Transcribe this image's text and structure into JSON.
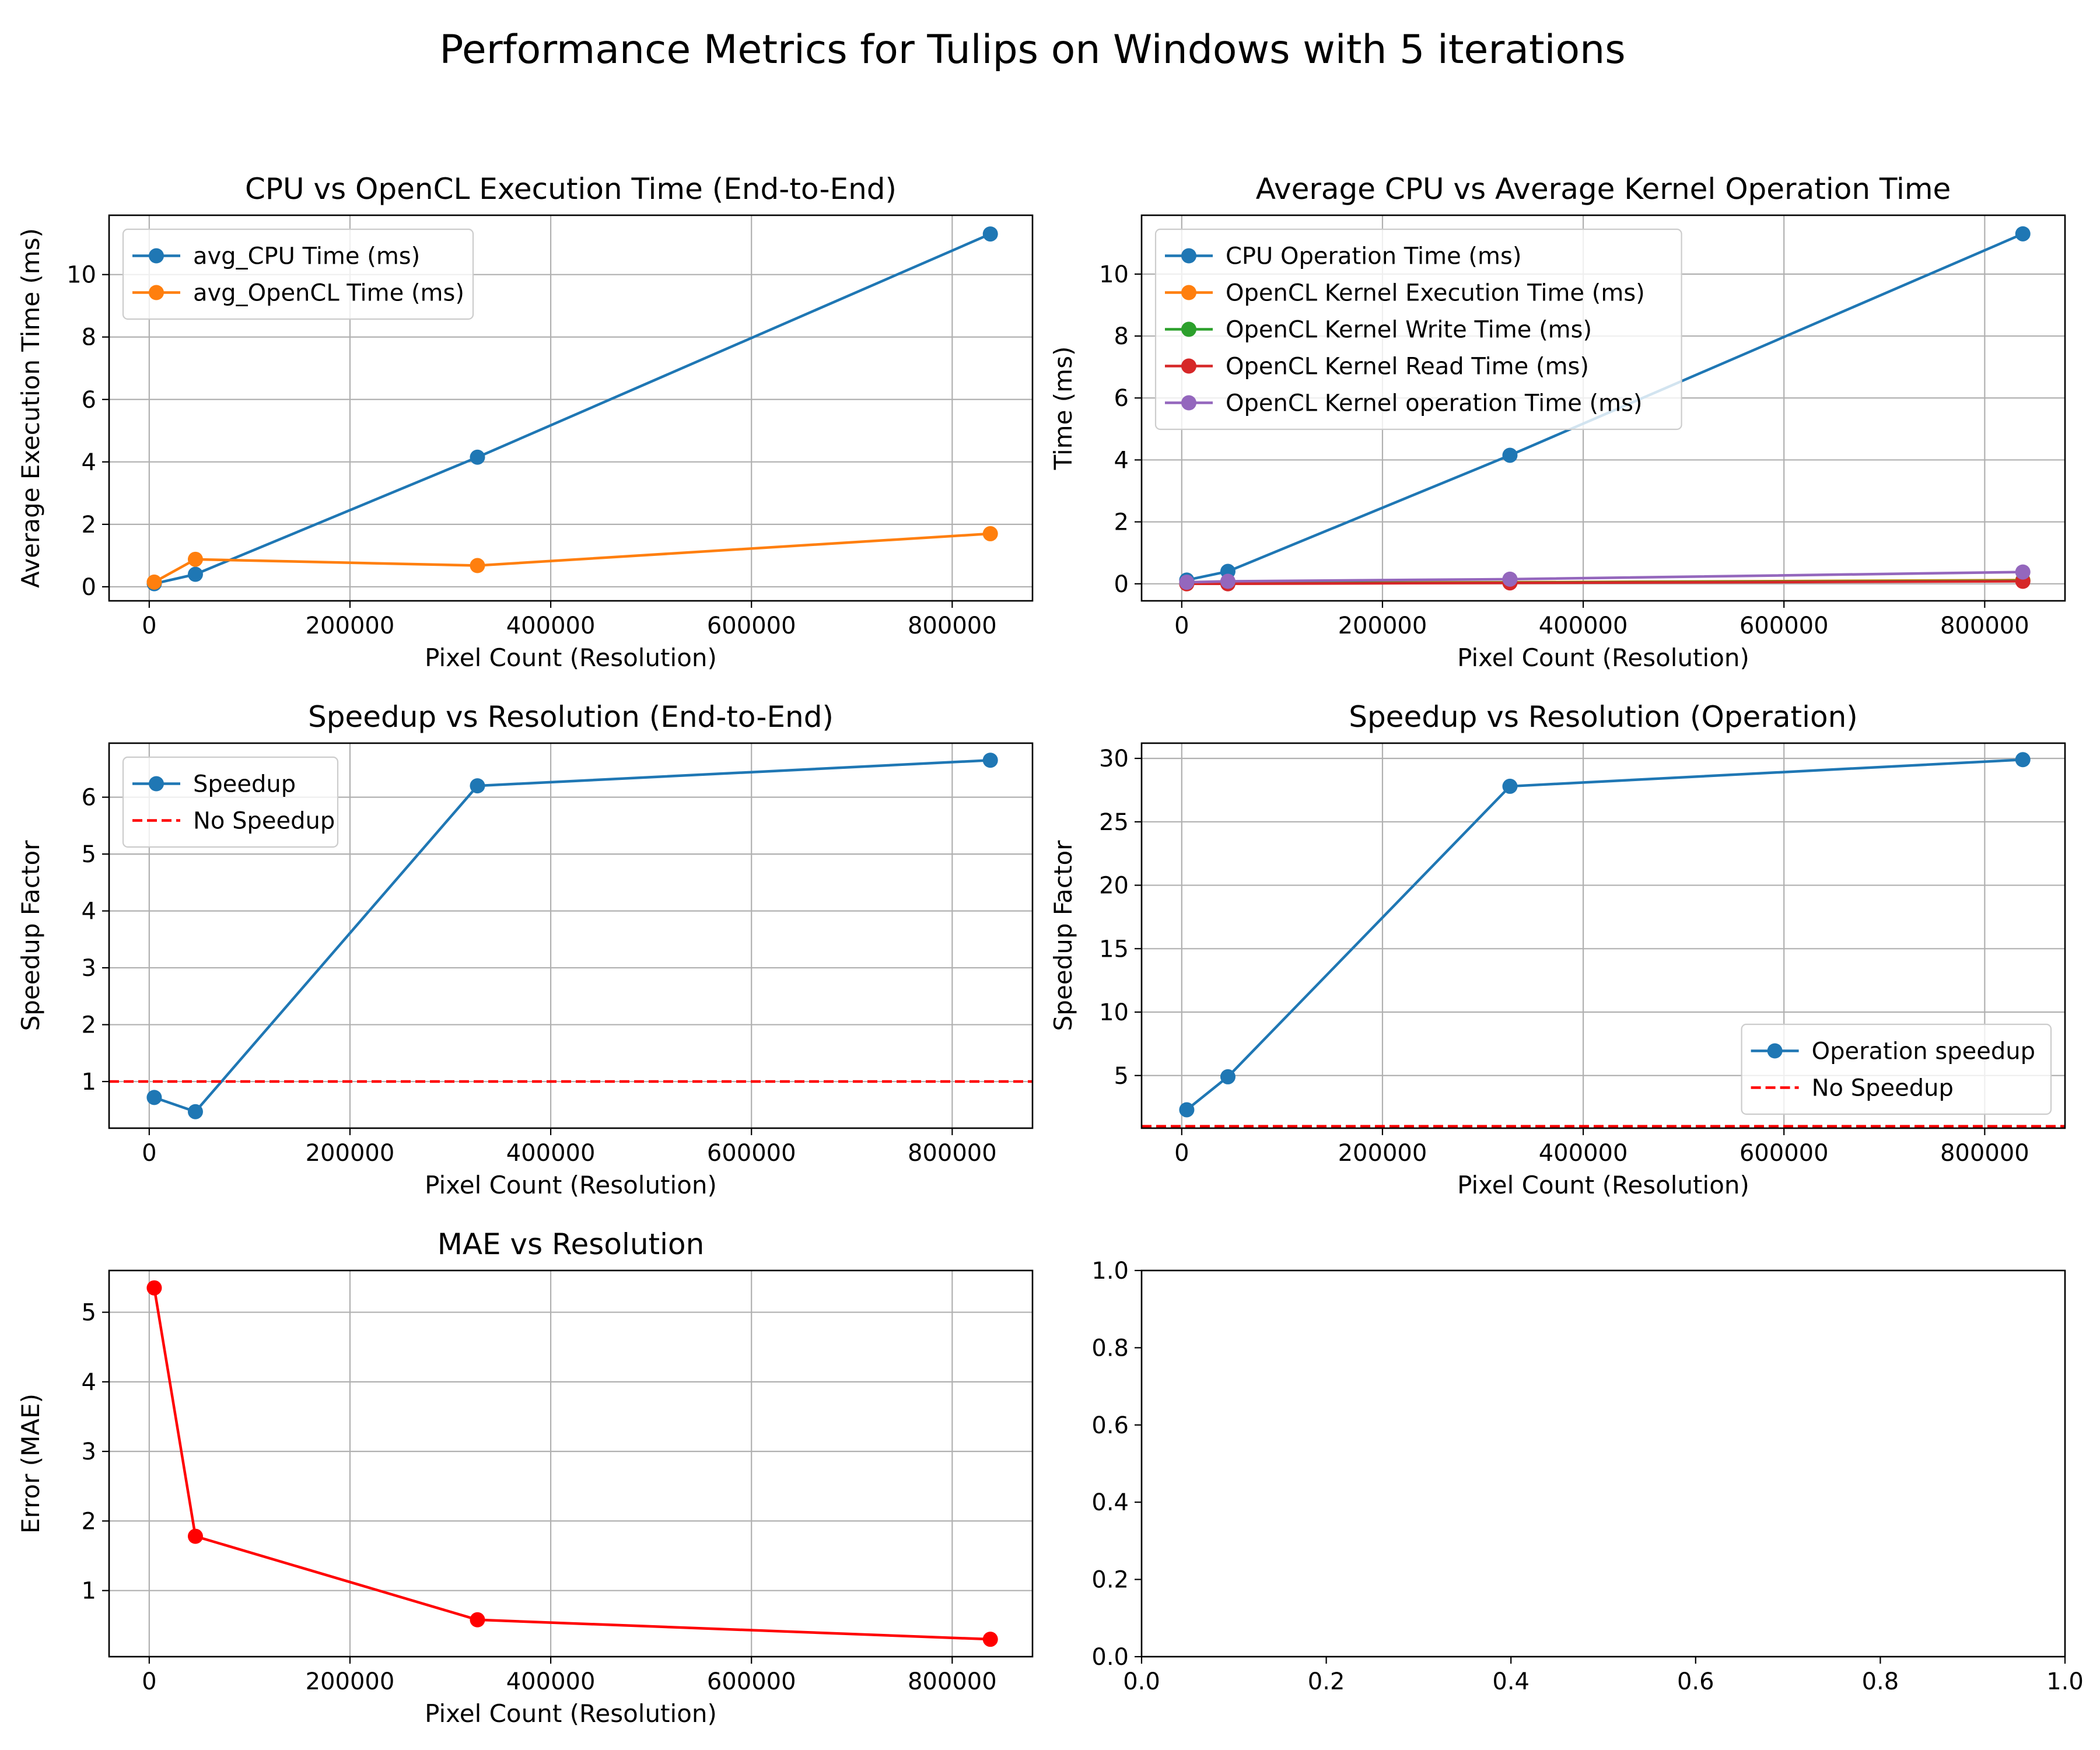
{
  "suptitle": "Performance Metrics for Tulips on Windows with 5 iterations",
  "chart_data": [
    {
      "id": "e2e-time",
      "type": "line",
      "title": "CPU vs OpenCL Execution Time (End-to-End)",
      "xlabel": "Pixel Count (Resolution)",
      "ylabel": "Average Execution Time (ms)",
      "xlim": [
        -40000,
        880000
      ],
      "ylim": [
        -0.45,
        11.9
      ],
      "xticks": [
        0,
        200000,
        400000,
        600000,
        800000
      ],
      "yticks": [
        0,
        2,
        4,
        6,
        8,
        10
      ],
      "grid": true,
      "legend": "upper left",
      "series": [
        {
          "name": "avg_CPU Time (ms)",
          "color": "#1f77b4",
          "style": "solid",
          "marker": true,
          "x": [
            5000,
            46000,
            327000,
            838000
          ],
          "y": [
            0.1,
            0.4,
            4.15,
            11.3
          ]
        },
        {
          "name": "avg_OpenCL Time (ms)",
          "color": "#ff7f0e",
          "style": "solid",
          "marker": true,
          "x": [
            5000,
            46000,
            327000,
            838000
          ],
          "y": [
            0.15,
            0.88,
            0.68,
            1.7
          ]
        }
      ]
    },
    {
      "id": "op-time",
      "type": "line",
      "title": "Average CPU vs Average Kernel Operation Time",
      "xlabel": "Pixel Count (Resolution)",
      "ylabel": "Time (ms)",
      "xlim": [
        -40000,
        880000
      ],
      "ylim": [
        -0.55,
        11.9
      ],
      "xticks": [
        0,
        200000,
        400000,
        600000,
        800000
      ],
      "yticks": [
        0,
        2,
        4,
        6,
        8,
        10
      ],
      "grid": true,
      "legend": "upper left",
      "series": [
        {
          "name": "CPU Operation Time (ms)",
          "color": "#1f77b4",
          "style": "solid",
          "marker": true,
          "x": [
            5000,
            46000,
            327000,
            838000
          ],
          "y": [
            0.12,
            0.4,
            4.15,
            11.3
          ]
        },
        {
          "name": "OpenCL Kernel Execution Time (ms)",
          "color": "#ff7f0e",
          "style": "solid",
          "marker": true,
          "x": [
            5000,
            46000,
            327000,
            838000
          ],
          "y": [
            0.02,
            0.03,
            0.05,
            0.12
          ]
        },
        {
          "name": "OpenCL Kernel Write Time (ms)",
          "color": "#2ca02c",
          "style": "solid",
          "marker": true,
          "x": [
            5000,
            46000,
            327000,
            838000
          ],
          "y": [
            0.01,
            0.02,
            0.04,
            0.1
          ]
        },
        {
          "name": "OpenCL Kernel Read Time (ms)",
          "color": "#d62728",
          "style": "solid",
          "marker": true,
          "x": [
            5000,
            46000,
            327000,
            838000
          ],
          "y": [
            0.0,
            0.0,
            0.03,
            0.08
          ]
        },
        {
          "name": "OpenCL Kernel operation Time (ms)",
          "color": "#9467bd",
          "style": "solid",
          "marker": true,
          "x": [
            5000,
            46000,
            327000,
            838000
          ],
          "y": [
            0.05,
            0.08,
            0.15,
            0.38
          ]
        }
      ]
    },
    {
      "id": "e2e-speedup",
      "type": "line",
      "title": "Speedup vs Resolution (End-to-End)",
      "xlabel": "Pixel Count (Resolution)",
      "ylabel": "Speedup Factor",
      "xlim": [
        -40000,
        880000
      ],
      "ylim": [
        0.18,
        6.95
      ],
      "xticks": [
        0,
        200000,
        400000,
        600000,
        800000
      ],
      "yticks": [
        1,
        2,
        3,
        4,
        5,
        6
      ],
      "grid": true,
      "legend": "upper left",
      "series": [
        {
          "name": "Speedup",
          "color": "#1f77b4",
          "style": "solid",
          "marker": true,
          "x": [
            5000,
            46000,
            327000,
            838000
          ],
          "y": [
            0.72,
            0.47,
            6.2,
            6.65
          ]
        },
        {
          "name": "No Speedup",
          "color": "#ff0000",
          "style": "dashed",
          "marker": false,
          "hline": 1
        }
      ]
    },
    {
      "id": "op-speedup",
      "type": "line",
      "title": "Speedup vs Resolution (Operation)",
      "xlabel": "Pixel Count (Resolution)",
      "ylabel": "Speedup Factor",
      "xlim": [
        -40000,
        880000
      ],
      "ylim": [
        0.85,
        31.2
      ],
      "xticks": [
        0,
        200000,
        400000,
        600000,
        800000
      ],
      "yticks": [
        5,
        10,
        15,
        20,
        25,
        30
      ],
      "grid": true,
      "legend": "lower right",
      "series": [
        {
          "name": "Operation speedup",
          "color": "#1f77b4",
          "style": "solid",
          "marker": true,
          "x": [
            5000,
            46000,
            327000,
            838000
          ],
          "y": [
            2.3,
            4.9,
            27.8,
            29.9
          ]
        },
        {
          "name": "No Speedup",
          "color": "#ff0000",
          "style": "dashed",
          "marker": false,
          "hline": 1
        }
      ]
    },
    {
      "id": "mae",
      "type": "line",
      "title": "MAE vs Resolution",
      "xlabel": "Pixel Count (Resolution)",
      "ylabel": "Error (MAE)",
      "xlim": [
        -40000,
        880000
      ],
      "ylim": [
        0.05,
        5.6
      ],
      "xticks": [
        0,
        200000,
        400000,
        600000,
        800000
      ],
      "yticks": [
        1,
        2,
        3,
        4,
        5
      ],
      "grid": true,
      "legend": "",
      "series": [
        {
          "name": "",
          "color": "#ff0000",
          "style": "solid",
          "marker": true,
          "x": [
            5000,
            46000,
            327000,
            838000
          ],
          "y": [
            5.35,
            1.78,
            0.58,
            0.3
          ]
        }
      ]
    },
    {
      "id": "empty",
      "type": "line",
      "title": "",
      "xlabel": "",
      "ylabel": "",
      "xlim": [
        0,
        1
      ],
      "ylim": [
        0,
        1
      ],
      "xticks": [
        0.0,
        0.2,
        0.4,
        0.6,
        0.8,
        1.0
      ],
      "yticks": [
        0.0,
        0.2,
        0.4,
        0.6,
        0.8,
        1.0
      ],
      "tickformat": "fixed1",
      "grid": false,
      "legend": "",
      "series": []
    }
  ]
}
